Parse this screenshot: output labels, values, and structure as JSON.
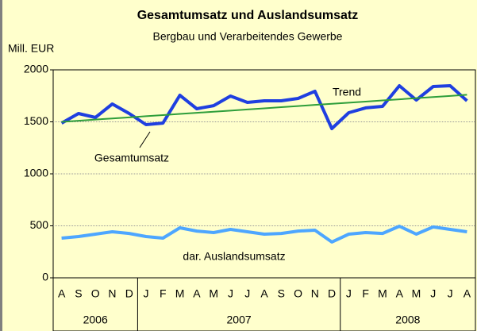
{
  "chart_data": {
    "type": "line",
    "title": "Gesamtumsatz und Auslandsumsatz",
    "subtitle": "Bergbau und Verarbeitendes Gewerbe",
    "y_label": "Mill. EUR",
    "categories": [
      "A",
      "S",
      "O",
      "N",
      "D",
      "J",
      "F",
      "M",
      "A",
      "M",
      "J",
      "J",
      "A",
      "S",
      "O",
      "N",
      "D",
      "J",
      "F",
      "M",
      "A",
      "M",
      "J",
      "J",
      "A"
    ],
    "category_years": [
      "2006",
      "2006",
      "2006",
      "2006",
      "2006",
      "2007",
      "2007",
      "2007",
      "2007",
      "2007",
      "2007",
      "2007",
      "2007",
      "2007",
      "2007",
      "2007",
      "2007",
      "2008",
      "2008",
      "2008",
      "2008",
      "2008",
      "2008",
      "2008",
      "2008"
    ],
    "series": [
      {
        "name": "Gesamtumsatz",
        "color": "#1f3fe0",
        "values": [
          1488,
          1580,
          1542,
          1672,
          1580,
          1473,
          1488,
          1756,
          1626,
          1656,
          1748,
          1687,
          1702,
          1702,
          1725,
          1794,
          1435,
          1588,
          1634,
          1649,
          1847,
          1710,
          1840,
          1847,
          1702
        ]
      },
      {
        "name": "Trend",
        "color": "#2e9e3a",
        "values": [
          1500,
          1511,
          1522,
          1533,
          1543,
          1554,
          1565,
          1576,
          1587,
          1598,
          1608,
          1619,
          1630,
          1641,
          1652,
          1663,
          1673,
          1684,
          1695,
          1706,
          1717,
          1728,
          1738,
          1749,
          1760
        ]
      },
      {
        "name": "dar. Auslandsumsatz",
        "color": "#4da6ff",
        "values": [
          382,
          397,
          420,
          443,
          427,
          397,
          382,
          481,
          450,
          435,
          466,
          443,
          420,
          427,
          450,
          458,
          344,
          420,
          435,
          427,
          496,
          420,
          489,
          466,
          443
        ]
      }
    ],
    "ylim": [
      0,
      2000
    ],
    "yticks": [
      0,
      500,
      1000,
      1500,
      2000
    ],
    "grid": true
  }
}
